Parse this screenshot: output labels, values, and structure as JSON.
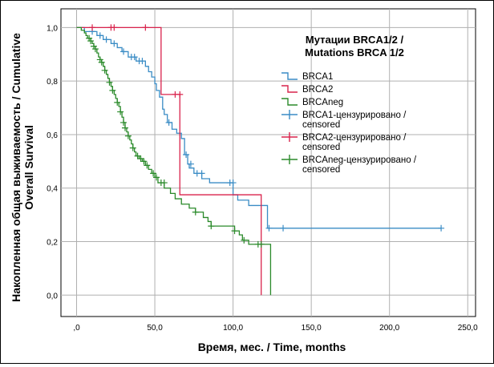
{
  "chart_data": {
    "type": "line",
    "xlabel": "Время, мес. / Time, months",
    "ylabel_line1": "Накопленная общая выживаемость / Cumulative",
    "ylabel_line2": "Overall Survival",
    "xlim": [
      -10,
      255
    ],
    "ylim": [
      -0.08,
      1.07
    ],
    "x_ticks": [
      0,
      50,
      100,
      150,
      200,
      250
    ],
    "x_tick_labels": [
      ",0",
      "50,0",
      "100,0",
      "150,0",
      "200,0",
      "250,0"
    ],
    "y_ticks": [
      0,
      0.2,
      0.4,
      0.6,
      0.8,
      1.0
    ],
    "y_tick_labels": [
      "0,0",
      "0,2",
      "0,4",
      "0,6",
      "0,8",
      "1,0"
    ],
    "grid": true,
    "legend": {
      "title_line1": "Мутации BRCA1/2 /",
      "title_line2": "Mutations BRCA 1/2",
      "placement": "top-right",
      "entries": [
        {
          "kind": "line",
          "color": "#3a8cc5",
          "lines": [
            "BRCA1"
          ]
        },
        {
          "kind": "line",
          "color": "#d9234c",
          "lines": [
            "BRCA2"
          ]
        },
        {
          "kind": "line",
          "color": "#2a8a2a",
          "lines": [
            "BRCAneg"
          ]
        },
        {
          "kind": "censor",
          "color": "#3a8cc5",
          "lines": [
            "BRCA1-цензурировано /",
            "censored"
          ]
        },
        {
          "kind": "censor",
          "color": "#d9234c",
          "lines": [
            "BRCA2-цензурировано /",
            "censored"
          ]
        },
        {
          "kind": "censor",
          "color": "#2a8a2a",
          "lines": [
            "BRCAneg-цензурировано /",
            "censored"
          ]
        }
      ]
    },
    "series": [
      {
        "name": "BRCA1",
        "color": "#3a8cc5",
        "steps": [
          [
            0,
            1.0
          ],
          [
            5,
            0.985
          ],
          [
            13,
            0.97
          ],
          [
            17,
            0.955
          ],
          [
            22,
            0.94
          ],
          [
            26,
            0.925
          ],
          [
            29,
            0.91
          ],
          [
            33,
            0.89
          ],
          [
            38,
            0.875
          ],
          [
            44,
            0.855
          ],
          [
            46,
            0.835
          ],
          [
            48,
            0.815
          ],
          [
            50,
            0.79
          ],
          [
            51,
            0.765
          ],
          [
            53,
            0.74
          ],
          [
            55,
            0.695
          ],
          [
            56,
            0.675
          ],
          [
            58,
            0.645
          ],
          [
            61,
            0.62
          ],
          [
            64,
            0.605
          ],
          [
            67,
            0.585
          ],
          [
            69,
            0.525
          ],
          [
            71,
            0.49
          ],
          [
            72,
            0.475
          ],
          [
            75,
            0.455
          ],
          [
            80,
            0.435
          ],
          [
            85,
            0.42
          ],
          [
            100,
            0.375
          ],
          [
            103,
            0.355
          ],
          [
            110,
            0.335
          ],
          [
            122,
            0.25
          ],
          [
            233,
            0.25
          ]
        ],
        "censored": [
          [
            10,
            0.985
          ],
          [
            15,
            0.97
          ],
          [
            19,
            0.955
          ],
          [
            24,
            0.94
          ],
          [
            30,
            0.91
          ],
          [
            35,
            0.89
          ],
          [
            37,
            0.89
          ],
          [
            40,
            0.875
          ],
          [
            42,
            0.875
          ],
          [
            59,
            0.645
          ],
          [
            70,
            0.525
          ],
          [
            73,
            0.49
          ],
          [
            77,
            0.455
          ],
          [
            80,
            0.455
          ],
          [
            98,
            0.42
          ],
          [
            100,
            0.42
          ],
          [
            123,
            0.25
          ],
          [
            132,
            0.25
          ],
          [
            233,
            0.25
          ]
        ]
      },
      {
        "name": "BRCA2",
        "color": "#d9234c",
        "steps": [
          [
            0,
            1.0
          ],
          [
            54,
            0.75
          ],
          [
            66,
            0.375
          ],
          [
            118,
            0.0
          ]
        ],
        "censored": [
          [
            10,
            1.0
          ],
          [
            22,
            1.0
          ],
          [
            24,
            1.0
          ],
          [
            44,
            1.0
          ],
          [
            63,
            0.75
          ],
          [
            66,
            0.75
          ]
        ]
      },
      {
        "name": "BRCAneg",
        "color": "#2a8a2a",
        "steps": [
          [
            0,
            1.0
          ],
          [
            3,
            0.99
          ],
          [
            5,
            0.98
          ],
          [
            6,
            0.97
          ],
          [
            7,
            0.96
          ],
          [
            9,
            0.95
          ],
          [
            10,
            0.94
          ],
          [
            11,
            0.93
          ],
          [
            12,
            0.92
          ],
          [
            13,
            0.905
          ],
          [
            14,
            0.89
          ],
          [
            15,
            0.88
          ],
          [
            16,
            0.87
          ],
          [
            17,
            0.855
          ],
          [
            18,
            0.84
          ],
          [
            19,
            0.825
          ],
          [
            20,
            0.81
          ],
          [
            21,
            0.795
          ],
          [
            22,
            0.78
          ],
          [
            23,
            0.765
          ],
          [
            24,
            0.75
          ],
          [
            25,
            0.735
          ],
          [
            26,
            0.72
          ],
          [
            27,
            0.705
          ],
          [
            28,
            0.685
          ],
          [
            29,
            0.665
          ],
          [
            30,
            0.645
          ],
          [
            31,
            0.625
          ],
          [
            32,
            0.61
          ],
          [
            33,
            0.595
          ],
          [
            34,
            0.58
          ],
          [
            35,
            0.565
          ],
          [
            36,
            0.55
          ],
          [
            37,
            0.535
          ],
          [
            38,
            0.52
          ],
          [
            40,
            0.51
          ],
          [
            42,
            0.5
          ],
          [
            44,
            0.485
          ],
          [
            46,
            0.47
          ],
          [
            48,
            0.455
          ],
          [
            50,
            0.44
          ],
          [
            52,
            0.42
          ],
          [
            56,
            0.4
          ],
          [
            60,
            0.38
          ],
          [
            63,
            0.36
          ],
          [
            67,
            0.34
          ],
          [
            72,
            0.325
          ],
          [
            76,
            0.31
          ],
          [
            81,
            0.29
          ],
          [
            84,
            0.275
          ],
          [
            86,
            0.258
          ],
          [
            101,
            0.24
          ],
          [
            104,
            0.225
          ],
          [
            106,
            0.205
          ],
          [
            110,
            0.19
          ],
          [
            124,
            0.0
          ]
        ],
        "censored": [
          [
            8,
            0.96
          ],
          [
            9,
            0.95
          ],
          [
            11,
            0.93
          ],
          [
            12,
            0.92
          ],
          [
            15,
            0.88
          ],
          [
            16,
            0.87
          ],
          [
            18,
            0.84
          ],
          [
            21,
            0.795
          ],
          [
            23,
            0.765
          ],
          [
            26,
            0.72
          ],
          [
            28,
            0.685
          ],
          [
            30,
            0.645
          ],
          [
            31,
            0.625
          ],
          [
            33,
            0.595
          ],
          [
            36,
            0.55
          ],
          [
            39,
            0.52
          ],
          [
            41,
            0.51
          ],
          [
            43,
            0.5
          ],
          [
            45,
            0.485
          ],
          [
            49,
            0.455
          ],
          [
            51,
            0.44
          ],
          [
            54,
            0.42
          ],
          [
            56,
            0.42
          ],
          [
            76,
            0.31
          ],
          [
            86,
            0.258
          ],
          [
            101,
            0.24
          ],
          [
            107,
            0.205
          ],
          [
            116,
            0.19
          ],
          [
            118,
            0.19
          ]
        ]
      }
    ]
  }
}
